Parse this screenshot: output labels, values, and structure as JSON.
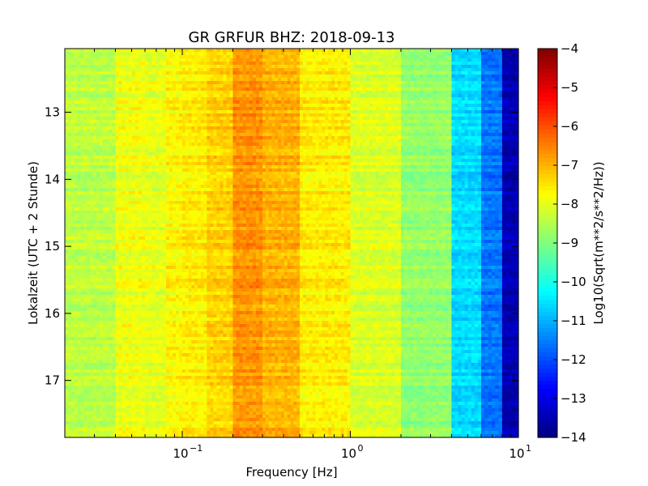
{
  "chart_data": {
    "type": "heatmap",
    "title": "GR GRFUR BHZ: 2018-09-13",
    "xlabel": "Frequency [Hz]",
    "ylabel": "Lokalzeit (UTC + 2 Stunde)",
    "x_scale": "log",
    "x_range_hz": [
      0.02,
      10
    ],
    "x_ticks": [
      {
        "value": 0.1,
        "base": "10",
        "exp": "−1"
      },
      {
        "value": 1,
        "base": "10",
        "exp": "0"
      },
      {
        "value": 10,
        "base": "10",
        "exp": "1"
      }
    ],
    "y_range_hours": [
      12.05,
      17.85
    ],
    "y_inverted": true,
    "y_ticks": [
      "13",
      "14",
      "15",
      "16",
      "17"
    ],
    "colorbar": {
      "label": "Log10(Sqrt(m**2/s**2/Hz))",
      "range": [
        -14,
        -4
      ],
      "ticks": [
        "−4",
        "−5",
        "−6",
        "−7",
        "−8",
        "−9",
        "−10",
        "−11",
        "−12",
        "−13",
        "−14"
      ],
      "colormap": "jet"
    },
    "frequency_bins_hz": [
      0.02,
      0.04,
      0.06,
      0.08,
      0.1,
      0.14,
      0.2,
      0.3,
      0.5,
      1.0,
      2.0,
      4.0,
      6.0,
      8.0,
      10.0
    ],
    "mean_log10_amplitude_per_bin": [
      -8.4,
      -7.9,
      -8.0,
      -7.7,
      -7.6,
      -7.3,
      -6.7,
      -7.0,
      -7.6,
      -8.1,
      -8.8,
      -10.6,
      -11.6,
      -13.5
    ]
  }
}
